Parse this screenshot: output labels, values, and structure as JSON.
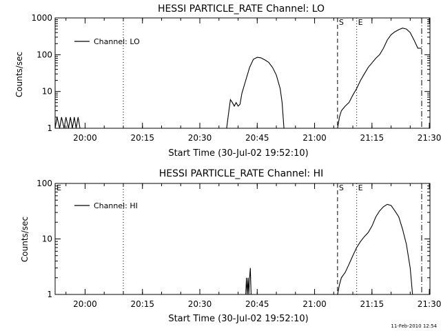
{
  "footer": {
    "timestamp": "11-Feb-2010 12:54"
  },
  "colors": {
    "background": "#ffffff",
    "ink": "#000000"
  },
  "chart_data": [
    {
      "type": "line",
      "title": "HESSI PARTICLE_RATE Channel: LO",
      "xlabel": "Start Time (30-Jul-02 19:52:10)",
      "ylabel": "Counts/sec",
      "yscale": "log",
      "ylim": [
        1,
        1000
      ],
      "xlim_minutes_after_start": [
        0,
        98
      ],
      "x_tick_labels": [
        "20:00",
        "20:15",
        "20:30",
        "20:45",
        "21:00",
        "21:15",
        "21:30"
      ],
      "y_tick_labels": [
        "1",
        "10",
        "100",
        "1000"
      ],
      "legend": {
        "placement": "top-left",
        "entries": [
          "Channel: LO"
        ]
      },
      "vertical_markers": [
        {
          "time": "20:10",
          "style": "dotted",
          "label": ""
        },
        {
          "time": "21:06",
          "style": "dashed",
          "label": "S"
        },
        {
          "time": "21:11",
          "style": "dotted",
          "label": "E"
        },
        {
          "time": "21:28",
          "style": "dashdot",
          "label": ""
        }
      ],
      "series": [
        {
          "name": "Channel: LO",
          "segments": [
            [
              [
                "19:52:10",
                1
              ],
              [
                "19:52:40",
                2
              ],
              [
                "19:53:20",
                1
              ],
              [
                "19:53:50",
                2
              ],
              [
                "19:54:30",
                1
              ],
              [
                "19:55:00",
                2
              ],
              [
                "19:55:40",
                1
              ],
              [
                "19:56:10",
                2
              ],
              [
                "19:56:40",
                1
              ],
              [
                "19:57:10",
                2
              ],
              [
                "19:57:40",
                1
              ],
              [
                "19:58:10",
                2
              ],
              [
                "19:58:40",
                1
              ]
            ],
            [
              [
                "20:37",
                1
              ],
              [
                "20:37.6",
                3
              ],
              [
                "20:38",
                6
              ],
              [
                "20:38.5",
                5
              ],
              [
                "20:39",
                4
              ],
              [
                "20:39.5",
                5
              ],
              [
                "20:40",
                4
              ],
              [
                "20:40.5",
                4.5
              ],
              [
                "20:41",
                9
              ],
              [
                "20:42",
                20
              ],
              [
                "20:43",
                45
              ],
              [
                "20:44",
                75
              ],
              [
                "20:45",
                85
              ],
              [
                "20:46",
                82
              ],
              [
                "20:47",
                72
              ],
              [
                "20:48",
                62
              ],
              [
                "20:49",
                45
              ],
              [
                "20:50",
                28
              ],
              [
                "20:51",
                12
              ],
              [
                "20:51.5",
                5
              ],
              [
                "20:52",
                1
              ]
            ],
            [
              [
                "21:06",
                1
              ],
              [
                "21:06.5",
                2
              ],
              [
                "21:07",
                3
              ],
              [
                "21:08",
                4
              ],
              [
                "21:09",
                5
              ],
              [
                "21:10",
                8
              ],
              [
                "21:11",
                12
              ],
              [
                "21:12",
                20
              ],
              [
                "21:13",
                30
              ],
              [
                "21:14",
                45
              ],
              [
                "21:15",
                60
              ],
              [
                "21:16",
                80
              ],
              [
                "21:17",
                100
              ],
              [
                "21:18",
                150
              ],
              [
                "21:19",
                250
              ],
              [
                "21:20",
                350
              ],
              [
                "21:21",
                420
              ],
              [
                "21:22",
                480
              ],
              [
                "21:23",
                530
              ],
              [
                "21:24",
                500
              ],
              [
                "21:25",
                400
              ],
              [
                "21:26",
                250
              ],
              [
                "21:27",
                150
              ],
              [
                "21:28",
                150
              ]
            ]
          ]
        }
      ]
    },
    {
      "type": "line",
      "title": "HESSI PARTICLE_RATE Channel: HI",
      "xlabel": "Start Time (30-Jul-02 19:52:10)",
      "ylabel": "Counts/sec",
      "yscale": "log",
      "ylim": [
        1,
        100
      ],
      "xlim_minutes_after_start": [
        0,
        98
      ],
      "x_tick_labels": [
        "20:00",
        "20:15",
        "20:30",
        "20:45",
        "21:00",
        "21:15",
        "21:30"
      ],
      "y_tick_labels": [
        "1",
        "10",
        "100"
      ],
      "legend": {
        "placement": "top-left",
        "entries": [
          "Channel: HI"
        ]
      },
      "corner_marks": [
        "E",
        "E"
      ],
      "vertical_markers": [
        {
          "time": "20:10",
          "style": "dotted",
          "label": ""
        },
        {
          "time": "21:06",
          "style": "dashed",
          "label": "S"
        },
        {
          "time": "21:11",
          "style": "dotted",
          "label": "E"
        },
        {
          "time": "21:28",
          "style": "dashdot",
          "label": ""
        }
      ],
      "series": [
        {
          "name": "Channel: HI",
          "segments": [
            [
              [
                "20:42",
                1
              ],
              [
                "20:42.2",
                2
              ],
              [
                "20:42.4",
                1
              ],
              [
                "20:42.6",
                2
              ],
              [
                "20:42.8",
                1
              ],
              [
                "20:43",
                2
              ],
              [
                "20:43.2",
                3
              ],
              [
                "20:43.4",
                1
              ]
            ],
            [
              [
                "21:06",
                1
              ],
              [
                "21:06.5",
                1.5
              ],
              [
                "21:07",
                2
              ],
              [
                "21:08",
                2.5
              ],
              [
                "21:09",
                3.5
              ],
              [
                "21:10",
                5
              ],
              [
                "21:11",
                7
              ],
              [
                "21:12",
                9
              ],
              [
                "21:13",
                11
              ],
              [
                "21:14",
                13
              ],
              [
                "21:15",
                17
              ],
              [
                "21:16",
                25
              ],
              [
                "21:17",
                32
              ],
              [
                "21:18",
                38
              ],
              [
                "21:19",
                42
              ],
              [
                "21:20",
                40
              ],
              [
                "21:21",
                32
              ],
              [
                "21:22",
                25
              ],
              [
                "21:23",
                15
              ],
              [
                "21:24",
                8
              ],
              [
                "21:25",
                3
              ],
              [
                "21:25.6",
                1
              ]
            ]
          ]
        }
      ]
    }
  ]
}
